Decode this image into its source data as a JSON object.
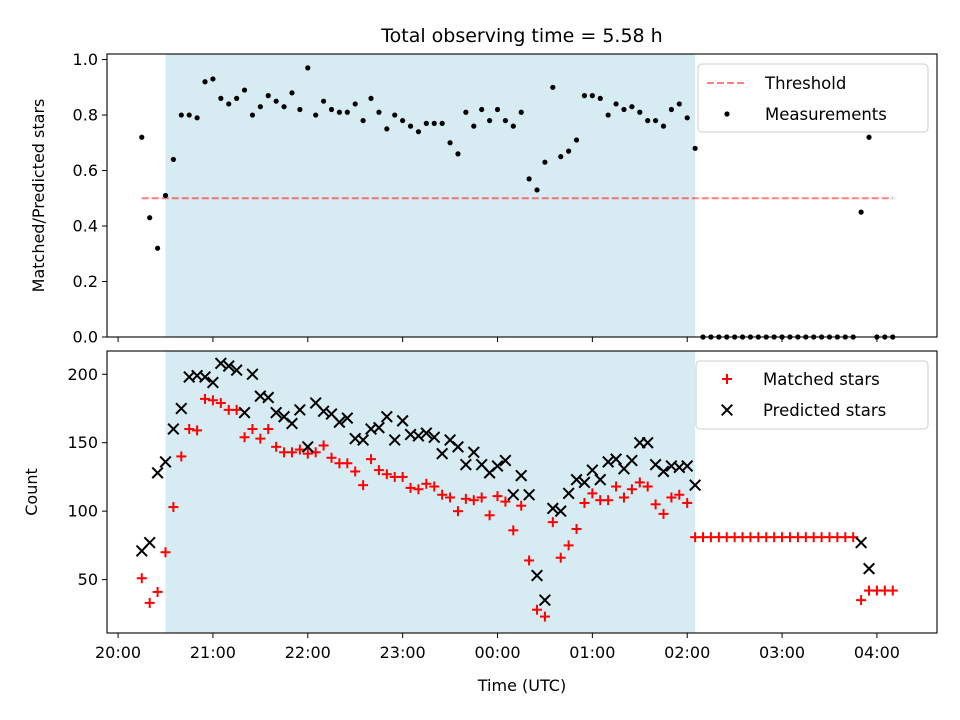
{
  "chart_data": [
    {
      "type": "scatter",
      "title": "Total observing time = 5.58 h",
      "xlabel": "",
      "ylabel": "Matched/Predicted stars",
      "ylim": [
        0,
        1.02
      ],
      "yticks": [
        "0.0",
        "0.2",
        "0.4",
        "0.6",
        "0.8",
        "1.0"
      ],
      "xlim": [
        "19:53",
        "04:38"
      ],
      "xticks": [
        "20:00",
        "21:00",
        "22:00",
        "23:00",
        "00:00",
        "01:00",
        "02:00",
        "03:00",
        "04:00"
      ],
      "xtick_labels_visible": false,
      "grid": false,
      "legend_position": "upper right",
      "highlight_span": {
        "start": "20:30",
        "end": "02:05",
        "color": "#add8e6"
      },
      "threshold": {
        "name": "Threshold",
        "value": 0.5,
        "x_start": "20:15",
        "x_end": "04:10",
        "color": "#ff0000",
        "style": "dashed"
      },
      "series": [
        {
          "name": "Measurements",
          "marker": "dot",
          "color": "#000000",
          "x": [
            "20:15",
            "20:20",
            "20:25",
            "20:30",
            "20:35",
            "20:40",
            "20:45",
            "20:50",
            "20:55",
            "21:00",
            "21:05",
            "21:10",
            "21:15",
            "21:20",
            "21:25",
            "21:30",
            "21:35",
            "21:40",
            "21:45",
            "21:50",
            "21:55",
            "22:00",
            "22:05",
            "22:10",
            "22:15",
            "22:20",
            "22:25",
            "22:30",
            "22:35",
            "22:40",
            "22:45",
            "22:50",
            "22:55",
            "23:00",
            "23:05",
            "23:10",
            "23:15",
            "23:20",
            "23:25",
            "23:30",
            "23:35",
            "23:40",
            "23:45",
            "23:50",
            "23:55",
            "00:00",
            "00:05",
            "00:10",
            "00:15",
            "00:20",
            "00:25",
            "00:30",
            "00:35",
            "00:40",
            "00:45",
            "00:50",
            "00:55",
            "01:00",
            "01:05",
            "01:10",
            "01:15",
            "01:20",
            "01:25",
            "01:30",
            "01:35",
            "01:40",
            "01:45",
            "01:50",
            "01:55",
            "02:00",
            "02:05",
            "02:10",
            "02:15",
            "02:20",
            "02:25",
            "02:30",
            "02:35",
            "02:40",
            "02:45",
            "02:50",
            "02:55",
            "03:00",
            "03:05",
            "03:10",
            "03:15",
            "03:20",
            "03:25",
            "03:30",
            "03:35",
            "03:40",
            "03:45",
            "03:50",
            "03:55",
            "04:00",
            "04:05",
            "04:10"
          ],
          "y": [
            0.72,
            0.43,
            0.32,
            0.51,
            0.64,
            0.8,
            0.8,
            0.79,
            0.92,
            0.93,
            0.86,
            0.84,
            0.86,
            0.89,
            0.8,
            0.83,
            0.87,
            0.85,
            0.83,
            0.88,
            0.82,
            0.97,
            0.8,
            0.85,
            0.82,
            0.81,
            0.81,
            0.84,
            0.78,
            0.86,
            0.81,
            0.75,
            0.8,
            0.78,
            0.76,
            0.74,
            0.77,
            0.77,
            0.77,
            0.7,
            0.66,
            0.81,
            0.76,
            0.82,
            0.78,
            0.82,
            0.78,
            0.76,
            0.81,
            0.57,
            0.53,
            0.63,
            0.9,
            0.65,
            0.67,
            0.71,
            0.87,
            0.87,
            0.86,
            0.8,
            0.84,
            0.82,
            0.83,
            0.81,
            0.78,
            0.78,
            0.76,
            0.82,
            0.84,
            0.79,
            0.68,
            0.0,
            0.0,
            0.0,
            0.0,
            0.0,
            0.0,
            0.0,
            0.0,
            0.0,
            0.0,
            0.0,
            0.0,
            0.0,
            0.0,
            0.0,
            0.0,
            0.0,
            0.0,
            0.0,
            0.0,
            0.45,
            0.72,
            0.0,
            0.0,
            0.0
          ]
        }
      ]
    },
    {
      "type": "scatter",
      "title": "",
      "xlabel": "Time (UTC)",
      "ylabel": "Count",
      "ylim": [
        11,
        217
      ],
      "yticks": [
        "50",
        "100",
        "150",
        "200"
      ],
      "xlim": [
        "19:53",
        "04:38"
      ],
      "xticks": [
        "20:00",
        "21:00",
        "22:00",
        "23:00",
        "00:00",
        "01:00",
        "02:00",
        "03:00",
        "04:00"
      ],
      "grid": false,
      "legend_position": "upper right",
      "highlight_span": {
        "start": "20:30",
        "end": "02:05",
        "color": "#add8e6"
      },
      "series": [
        {
          "name": "Matched stars",
          "marker": "plus",
          "color": "#ff0000",
          "x": [
            "20:15",
            "20:20",
            "20:25",
            "20:30",
            "20:35",
            "20:40",
            "20:45",
            "20:50",
            "20:55",
            "21:00",
            "21:05",
            "21:10",
            "21:15",
            "21:20",
            "21:25",
            "21:30",
            "21:35",
            "21:40",
            "21:45",
            "21:50",
            "21:55",
            "22:00",
            "22:05",
            "22:10",
            "22:15",
            "22:20",
            "22:25",
            "22:30",
            "22:35",
            "22:40",
            "22:45",
            "22:50",
            "22:55",
            "23:00",
            "23:05",
            "23:10",
            "23:15",
            "23:20",
            "23:25",
            "23:30",
            "23:35",
            "23:40",
            "23:45",
            "23:50",
            "23:55",
            "00:00",
            "00:05",
            "00:10",
            "00:15",
            "00:20",
            "00:25",
            "00:30",
            "00:35",
            "00:40",
            "00:45",
            "00:50",
            "00:55",
            "01:00",
            "01:05",
            "01:10",
            "01:15",
            "01:20",
            "01:25",
            "01:30",
            "01:35",
            "01:40",
            "01:45",
            "01:50",
            "01:55",
            "02:00",
            "02:05",
            "02:10",
            "02:15",
            "02:20",
            "02:25",
            "02:30",
            "02:35",
            "02:40",
            "02:45",
            "02:50",
            "02:55",
            "03:00",
            "03:05",
            "03:10",
            "03:15",
            "03:20",
            "03:25",
            "03:30",
            "03:35",
            "03:40",
            "03:45",
            "03:50",
            "03:55",
            "04:00",
            "04:05",
            "04:10"
          ],
          "y": [
            51,
            33,
            41,
            70,
            103,
            140,
            160,
            159,
            182,
            181,
            179,
            174,
            174,
            154,
            160,
            153,
            160,
            147,
            143,
            143,
            145,
            142,
            143,
            148,
            139,
            135,
            135,
            129,
            119,
            138,
            130,
            127,
            125,
            125,
            117,
            116,
            120,
            118,
            112,
            110,
            100,
            109,
            108,
            110,
            97,
            111,
            107,
            86,
            104,
            64,
            28,
            23,
            92,
            66,
            75,
            87,
            106,
            113,
            108,
            108,
            118,
            110,
            116,
            121,
            118,
            105,
            98,
            110,
            112,
            106,
            81,
            81,
            81,
            81,
            81,
            81,
            81,
            81,
            81,
            81,
            81,
            81,
            81,
            81,
            81,
            81,
            81,
            81,
            81,
            81,
            81,
            35,
            42,
            42,
            42,
            42
          ]
        },
        {
          "name": "Predicted stars",
          "marker": "x",
          "color": "#000000",
          "x": [
            "20:15",
            "20:20",
            "20:25",
            "20:30",
            "20:35",
            "20:40",
            "20:45",
            "20:50",
            "20:55",
            "21:00",
            "21:05",
            "21:10",
            "21:15",
            "21:20",
            "21:25",
            "21:30",
            "21:35",
            "21:40",
            "21:45",
            "21:50",
            "21:55",
            "22:00",
            "22:05",
            "22:10",
            "22:15",
            "22:20",
            "22:25",
            "22:30",
            "22:35",
            "22:40",
            "22:45",
            "22:50",
            "22:55",
            "23:00",
            "23:05",
            "23:10",
            "23:15",
            "23:20",
            "23:25",
            "23:30",
            "23:35",
            "23:40",
            "23:45",
            "23:50",
            "23:55",
            "00:00",
            "00:05",
            "00:10",
            "00:15",
            "00:20",
            "00:25",
            "00:30",
            "00:35",
            "00:40",
            "00:45",
            "00:50",
            "00:55",
            "01:00",
            "01:05",
            "01:10",
            "01:15",
            "01:20",
            "01:25",
            "01:30",
            "01:35",
            "01:40",
            "01:45",
            "01:50",
            "01:55",
            "02:00",
            "02:05",
            "03:50",
            "03:55"
          ],
          "y": [
            71,
            77,
            128,
            136,
            160,
            175,
            198,
            199,
            198,
            194,
            208,
            206,
            203,
            172,
            200,
            184,
            183,
            172,
            169,
            164,
            174,
            147,
            179,
            173,
            171,
            165,
            168,
            153,
            152,
            160,
            161,
            169,
            152,
            166,
            156,
            155,
            157,
            154,
            142,
            152,
            147,
            134,
            143,
            134,
            128,
            133,
            137,
            112,
            126,
            112,
            53,
            35,
            102,
            100,
            113,
            123,
            121,
            130,
            123,
            136,
            138,
            131,
            137,
            150,
            150,
            134,
            129,
            133,
            132,
            133,
            119,
            77,
            58
          ]
        }
      ]
    }
  ]
}
